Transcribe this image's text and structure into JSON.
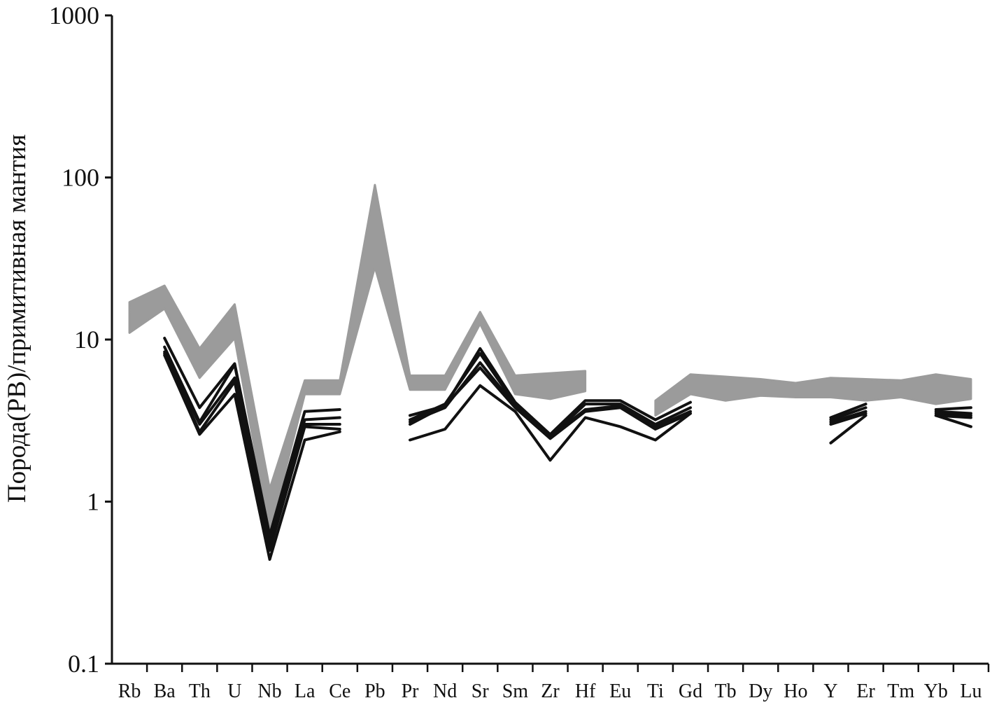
{
  "chart_data": {
    "type": "line",
    "title": "",
    "xlabel": "",
    "ylabel": "Порода(РВ)/примитивная мантия",
    "y_scale": "log",
    "ylim": [
      0.1,
      1000
    ],
    "y_ticks": [
      {
        "value": 0.1,
        "label": "0.1"
      },
      {
        "value": 1,
        "label": "1"
      },
      {
        "value": 10,
        "label": "10"
      },
      {
        "value": 100,
        "label": "100"
      },
      {
        "value": 1000,
        "label": "1000"
      }
    ],
    "categories": [
      "Rb",
      "Ba",
      "Th",
      "U",
      "Nb",
      "La",
      "Ce",
      "Pb",
      "Pr",
      "Nd",
      "Sr",
      "Sm",
      "Zr",
      "Hf",
      "Eu",
      "Ti",
      "Gd",
      "Tb",
      "Dy",
      "Ho",
      "Y",
      "Er",
      "Tm",
      "Yb",
      "Lu"
    ],
    "grid": false,
    "legend": "none",
    "band": {
      "color": "#9b9b9b",
      "upper": [
        17,
        21.5,
        8.8,
        16.5,
        1.2,
        5.6,
        5.6,
        90,
        6,
        6,
        14.8,
        6,
        6.2,
        6.4,
        null,
        4.2,
        6.1,
        5.9,
        5.7,
        5.4,
        5.8,
        5.7,
        5.6,
        6.1,
        5.7
      ],
      "lower": [
        11,
        15.5,
        5.8,
        10.2,
        0.65,
        4.6,
        4.6,
        28,
        4.9,
        4.9,
        12.5,
        4.6,
        4.3,
        4.8,
        null,
        3.4,
        4.6,
        4.2,
        4.5,
        4.4,
        4.4,
        4.2,
        4.4,
        4.0,
        4.3
      ]
    },
    "series_color": "#111111",
    "series": [
      {
        "values": [
          null,
          10.2,
          3.8,
          7.1,
          0.62,
          3.6,
          3.7,
          null,
          3.4,
          3.9,
          8.8,
          4.1,
          2.6,
          4.2,
          4.2,
          3.2,
          4.1,
          null,
          null,
          null,
          3.3,
          4.0,
          null,
          3.7,
          3.8
        ]
      },
      {
        "values": [
          null,
          9.0,
          3.1,
          7.0,
          0.58,
          3.2,
          3.3,
          null,
          3.2,
          4.0,
          8.2,
          4.0,
          2.5,
          4.0,
          4.0,
          3.0,
          3.8,
          null,
          null,
          null,
          3.2,
          3.8,
          null,
          3.6,
          3.5
        ]
      },
      {
        "values": [
          null,
          8.4,
          3.0,
          5.8,
          0.55,
          3.0,
          3.0,
          null,
          3.1,
          3.8,
          7.2,
          3.9,
          2.5,
          3.7,
          3.9,
          2.9,
          3.6,
          null,
          null,
          null,
          3.1,
          3.6,
          null,
          3.5,
          3.4
        ]
      },
      {
        "values": [
          null,
          8.2,
          2.7,
          5.5,
          0.5,
          2.9,
          2.8,
          null,
          3.0,
          3.9,
          6.7,
          3.8,
          2.45,
          3.6,
          3.8,
          2.8,
          3.5,
          null,
          null,
          null,
          3.0,
          3.5,
          null,
          3.4,
          3.3
        ]
      },
      {
        "values": [
          null,
          8.0,
          2.6,
          4.6,
          0.44,
          2.4,
          2.7,
          null,
          2.4,
          2.8,
          5.2,
          3.6,
          1.8,
          3.3,
          2.9,
          2.4,
          3.5,
          null,
          null,
          null,
          2.3,
          3.4,
          null,
          3.4,
          2.9
        ]
      }
    ]
  }
}
